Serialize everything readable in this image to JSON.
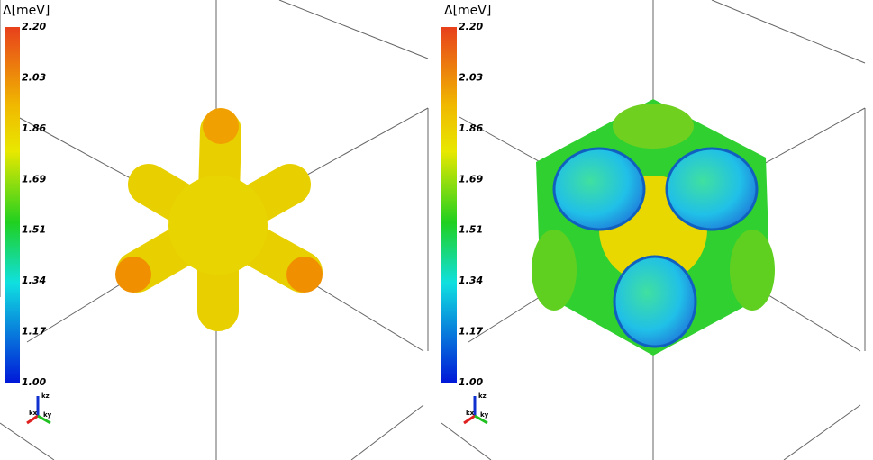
{
  "panels": [
    {
      "colorbar_title": "Δ[meV]",
      "colorbar_ticks": [
        "2.20",
        "2.03",
        "1.86",
        "1.69",
        "1.51",
        "1.34",
        "1.17",
        "1.00"
      ],
      "axes": [
        "kz",
        "kx",
        "ky"
      ]
    },
    {
      "colorbar_title": "Δ[meV]",
      "colorbar_ticks": [
        "2.20",
        "2.03",
        "1.86",
        "1.69",
        "1.51",
        "1.34",
        "1.17",
        "1.00"
      ],
      "axes": [
        "kz",
        "kx",
        "ky"
      ]
    }
  ]
}
